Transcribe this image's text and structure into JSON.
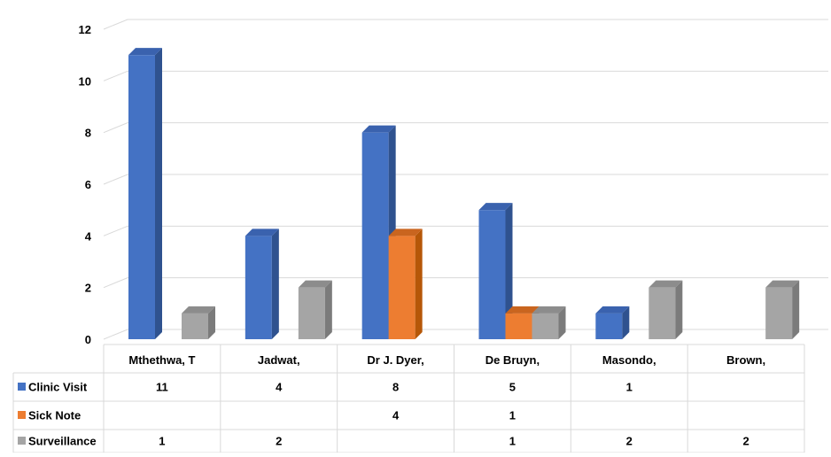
{
  "chart_data": {
    "type": "bar",
    "categories": [
      "Mthethwa, T",
      "Jadwat,",
      "Dr J. Dyer,",
      "De Bruyn,",
      "Masondo,",
      "Brown,"
    ],
    "series": [
      {
        "name": "Clinic Visit",
        "color": "#4472C4",
        "side_color": "#2F528F",
        "top_color": "#3A62AE",
        "values": [
          11,
          4,
          8,
          5,
          1,
          null
        ]
      },
      {
        "name": "Sick Note",
        "color": "#ED7D31",
        "side_color": "#B65708",
        "top_color": "#C9651F",
        "values": [
          null,
          null,
          4,
          1,
          null,
          null
        ]
      },
      {
        "name": "Surveillance",
        "color": "#A5A5A5",
        "side_color": "#7B7B7B",
        "top_color": "#8C8C8C",
        "values": [
          1,
          2,
          null,
          1,
          2,
          2
        ]
      }
    ],
    "yticks": [
      "0",
      "2",
      "4",
      "6",
      "8",
      "10",
      "12"
    ],
    "ylim": [
      0,
      12
    ],
    "grid": true,
    "data_table": true
  }
}
